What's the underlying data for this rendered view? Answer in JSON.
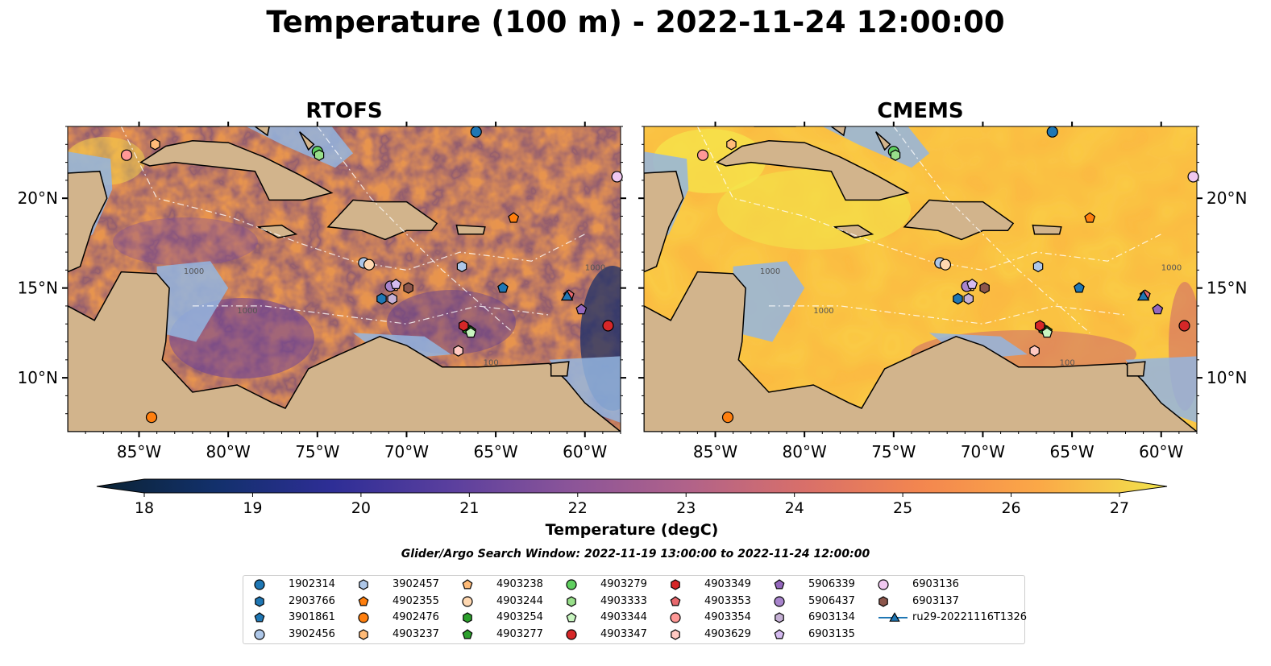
{
  "title": "Temperature (100 m) - 2022-11-24 12:00:00",
  "search_window": "Glider/Argo Search Window: 2022-11-19 13:00:00 to 2022-11-24 12:00:00",
  "colorbar": {
    "label": "Temperature (degC)",
    "ticks": [
      "18",
      "19",
      "20",
      "21",
      "22",
      "23",
      "24",
      "25",
      "26",
      "27"
    ]
  },
  "colors": {
    "land": "#d2b48c",
    "shallow": "#93b5e0",
    "deep": "#0a2233"
  },
  "chart_data": [
    {
      "type": "heatmap",
      "title": "RTOFS",
      "xlim": [
        -89,
        -58
      ],
      "ylim": [
        7,
        24
      ],
      "xticks": [
        "85°W",
        "80°W",
        "75°W",
        "70°W",
        "65°W",
        "60°W"
      ],
      "yticks": [
        "10°N",
        "15°N",
        "20°N"
      ],
      "colorscale": {
        "min": 18,
        "max": 27,
        "unit": "degC"
      }
    },
    {
      "type": "heatmap",
      "title": "CMEMS",
      "xlim": [
        -89,
        -58
      ],
      "ylim": [
        7,
        24
      ],
      "xticks": [
        "85°W",
        "80°W",
        "75°W",
        "70°W",
        "65°W",
        "60°W"
      ],
      "yticks": [
        "10°N",
        "15°N",
        "20°N"
      ],
      "colorscale": {
        "min": 18,
        "max": 27,
        "unit": "degC"
      }
    }
  ],
  "floats": [
    {
      "id": "1902314",
      "lon": -66.1,
      "lat": 23.7,
      "marker": "circle",
      "color": "#1f77b4"
    },
    {
      "id": "2903766",
      "lon": -71.4,
      "lat": 14.4,
      "marker": "hexagon",
      "color": "#1f77b4"
    },
    {
      "id": "3901861",
      "lon": -64.6,
      "lat": 15.0,
      "marker": "pentagon",
      "color": "#1f77b4"
    },
    {
      "id": "3902456",
      "lon": -72.4,
      "lat": 16.4,
      "marker": "circle",
      "color": "#aec7e8"
    },
    {
      "id": "3902457",
      "lon": -66.9,
      "lat": 16.2,
      "marker": "hexagon",
      "color": "#aec7e8"
    },
    {
      "id": "4902355",
      "lon": -64.0,
      "lat": 18.9,
      "marker": "pentagon",
      "color": "#ff7f0e"
    },
    {
      "id": "4902476",
      "lon": -84.3,
      "lat": 7.8,
      "marker": "circle",
      "color": "#ff7f0e"
    },
    {
      "id": "4903237",
      "lon": -84.1,
      "lat": 23.0,
      "marker": "hexagon",
      "color": "#ffbb78"
    },
    {
      "id": "4903238",
      "lon": -70.7,
      "lat": 15.1,
      "marker": "pentagon",
      "color": "#ffbb78"
    },
    {
      "id": "4903244",
      "lon": -72.1,
      "lat": 16.3,
      "marker": "circle",
      "color": "#ffd8b1"
    },
    {
      "id": "4903254",
      "lon": -66.6,
      "lat": 12.7,
      "marker": "hexagon",
      "color": "#2ca02c"
    },
    {
      "id": "4903277",
      "lon": -66.4,
      "lat": 12.6,
      "marker": "pentagon",
      "color": "#2ca02c"
    },
    {
      "id": "4903279",
      "lon": -75.0,
      "lat": 22.6,
      "marker": "circle",
      "color": "#5fcf5f"
    },
    {
      "id": "4903333",
      "lon": -74.9,
      "lat": 22.4,
      "marker": "hexagon",
      "color": "#98df8a"
    },
    {
      "id": "4903344",
      "lon": -66.4,
      "lat": 12.5,
      "marker": "pentagon",
      "color": "#c8f5c0"
    },
    {
      "id": "4903347",
      "lon": -58.7,
      "lat": 12.9,
      "marker": "circle",
      "color": "#d62728"
    },
    {
      "id": "4903349",
      "lon": -66.8,
      "lat": 12.9,
      "marker": "hexagon",
      "color": "#d62728"
    },
    {
      "id": "4903353",
      "lon": -60.9,
      "lat": 14.6,
      "marker": "pentagon",
      "color": "#e8686d"
    },
    {
      "id": "4903354",
      "lon": -85.7,
      "lat": 22.4,
      "marker": "circle",
      "color": "#ff9896"
    },
    {
      "id": "4903629",
      "lon": -67.1,
      "lat": 11.5,
      "marker": "hexagon",
      "color": "#ffc9c2"
    },
    {
      "id": "5906339",
      "lon": -60.2,
      "lat": 13.8,
      "marker": "pentagon",
      "color": "#9467bd"
    },
    {
      "id": "5906437",
      "lon": -70.9,
      "lat": 15.1,
      "marker": "circle",
      "color": "#a884cc"
    },
    {
      "id": "6903134",
      "lon": -70.8,
      "lat": 14.4,
      "marker": "hexagon",
      "color": "#c5b0d5"
    },
    {
      "id": "6903135",
      "lon": -70.6,
      "lat": 15.2,
      "marker": "pentagon",
      "color": "#d5bbf0"
    },
    {
      "id": "6903136",
      "lon": -58.2,
      "lat": 21.2,
      "marker": "circle",
      "color": "#f0c8f0"
    },
    {
      "id": "6903137",
      "lon": -69.9,
      "lat": 15.0,
      "marker": "hexagon",
      "color": "#8c564b"
    }
  ],
  "glider": {
    "id": "ru29-20221116T1326",
    "lon": -61.0,
    "lat": 14.5,
    "color": "#1f77b4"
  },
  "contour_labels": [
    "1000",
    "1000",
    "100",
    "1000"
  ]
}
